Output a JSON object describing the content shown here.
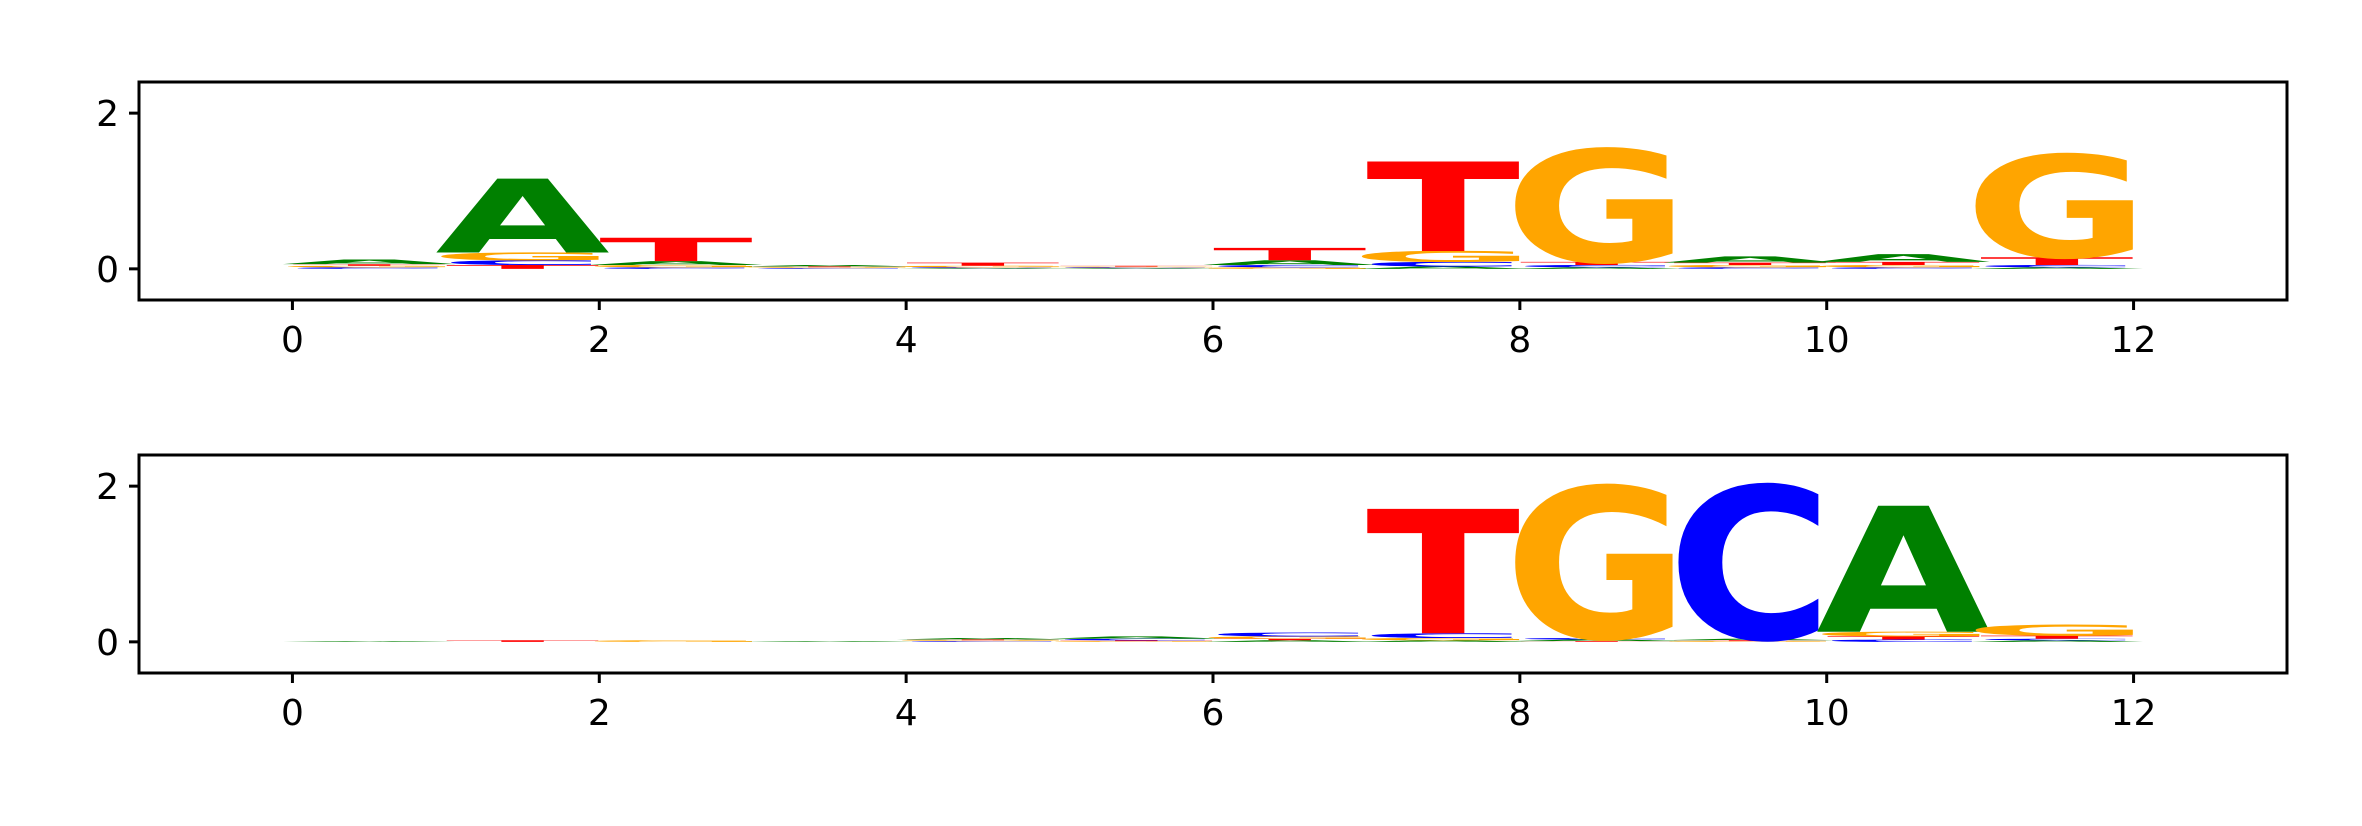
{
  "chart_data": [
    {
      "type": "sequence-logo",
      "title": "",
      "xlabel": "",
      "ylabel": "",
      "xlim": [
        -1,
        13
      ],
      "ylim": [
        -0.4,
        2.4
      ],
      "xticks": [
        "0",
        "2",
        "4",
        "6",
        "8",
        "10",
        "12"
      ],
      "yticks": [
        "0",
        "2"
      ],
      "colors": {
        "A": "#008000",
        "C": "#0000ff",
        "G": "#ffa500",
        "T": "#ff0000"
      },
      "positions": [
        {
          "pos": 0,
          "A": 0.06,
          "C": 0.02,
          "G": 0.02,
          "T": 0.02
        },
        {
          "pos": 1,
          "A": 0.95,
          "C": 0.06,
          "G": 0.1,
          "T": 0.05
        },
        {
          "pos": 2,
          "A": 0.05,
          "C": 0.02,
          "G": 0.03,
          "T": 0.3
        },
        {
          "pos": 3,
          "A": 0.02,
          "C": 0.01,
          "G": 0.01,
          "T": 0.01
        },
        {
          "pos": 4,
          "A": 0.01,
          "C": 0.01,
          "G": 0.02,
          "T": 0.04
        },
        {
          "pos": 5,
          "A": 0.01,
          "C": 0.01,
          "G": 0.01,
          "T": 0.01
        },
        {
          "pos": 6,
          "A": 0.06,
          "C": 0.03,
          "G": 0.02,
          "T": 0.16
        },
        {
          "pos": 7,
          "A": 0.03,
          "C": 0.06,
          "G": 0.14,
          "T": 1.15
        },
        {
          "pos": 8,
          "A": 0.02,
          "C": 0.03,
          "G": 1.45,
          "T": 0.04
        },
        {
          "pos": 9,
          "A": 0.08,
          "C": 0.02,
          "G": 0.03,
          "T": 0.03
        },
        {
          "pos": 10,
          "A": 0.1,
          "C": 0.02,
          "G": 0.03,
          "T": 0.04
        },
        {
          "pos": 11,
          "A": 0.02,
          "C": 0.03,
          "G": 1.32,
          "T": 0.1
        }
      ]
    },
    {
      "type": "sequence-logo",
      "title": "",
      "xlabel": "",
      "ylabel": "",
      "xlim": [
        -1,
        13
      ],
      "ylim": [
        -0.4,
        2.4
      ],
      "xticks": [
        "0",
        "2",
        "4",
        "6",
        "8",
        "10",
        "12"
      ],
      "yticks": [
        "0",
        "2"
      ],
      "colors": {
        "A": "#008000",
        "C": "#0000ff",
        "G": "#ffa500",
        "T": "#ff0000"
      },
      "positions": [
        {
          "pos": 0,
          "A": 0.01,
          "C": 0.0,
          "G": 0.0,
          "T": 0.0
        },
        {
          "pos": 1,
          "A": 0.0,
          "C": 0.0,
          "G": 0.0,
          "T": 0.02
        },
        {
          "pos": 2,
          "A": 0.0,
          "C": 0.0,
          "G": 0.02,
          "T": 0.0
        },
        {
          "pos": 3,
          "A": 0.01,
          "C": 0.0,
          "G": 0.0,
          "T": 0.0
        },
        {
          "pos": 4,
          "A": 0.02,
          "C": 0.01,
          "G": 0.01,
          "T": 0.01
        },
        {
          "pos": 5,
          "A": 0.03,
          "C": 0.02,
          "G": 0.01,
          "T": 0.01
        },
        {
          "pos": 6,
          "A": 0.02,
          "C": 0.05,
          "G": 0.03,
          "T": 0.02
        },
        {
          "pos": 7,
          "A": 0.02,
          "C": 0.06,
          "G": 0.03,
          "T": 1.6
        },
        {
          "pos": 8,
          "A": 0.02,
          "C": 0.02,
          "G": 1.95,
          "T": 0.01
        },
        {
          "pos": 9,
          "A": 0.02,
          "C": 1.97,
          "G": 0.01,
          "T": 0.01
        },
        {
          "pos": 10,
          "A": 1.62,
          "C": 0.03,
          "G": 0.06,
          "T": 0.04
        },
        {
          "pos": 11,
          "A": 0.02,
          "C": 0.02,
          "G": 0.14,
          "T": 0.04
        }
      ]
    }
  ]
}
